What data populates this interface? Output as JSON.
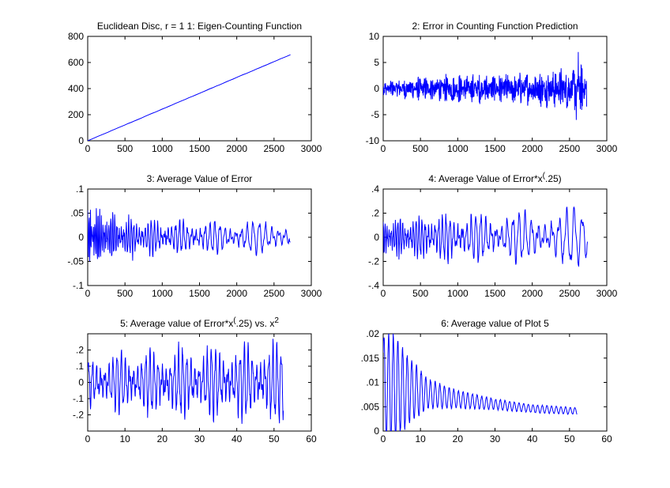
{
  "figure": {
    "background": "#ffffff",
    "line_color": "#0000ff"
  },
  "chart_data": [
    {
      "id": "p1",
      "type": "line",
      "title": "Euclidean Disc, r = 1 1: Eigen-Counting Function",
      "xlim": [
        0,
        3000
      ],
      "ylim": [
        0,
        800
      ],
      "x_ticks": [
        0,
        500,
        1000,
        1500,
        2000,
        2500,
        3000
      ],
      "y_ticks": [
        0,
        200,
        400,
        600,
        800
      ],
      "series": [
        {
          "kind": "linear",
          "x_start": 0,
          "x_end": 2720,
          "y_start": 0,
          "y_end": 660
        }
      ]
    },
    {
      "id": "p2",
      "type": "line",
      "title": "2: Error in Counting Function Prediction",
      "xlim": [
        0,
        3000
      ],
      "ylim": [
        -10,
        10
      ],
      "x_ticks": [
        0,
        500,
        1000,
        1500,
        2000,
        2500,
        3000
      ],
      "y_ticks": [
        -10,
        -5,
        0,
        5,
        10
      ],
      "series": [
        {
          "kind": "oscillating",
          "x_start": 0,
          "x_end": 2730,
          "points": 900,
          "envelope": [
            [
              0,
              1.5
            ],
            [
              500,
              2.5
            ],
            [
              1000,
              3.0
            ],
            [
              1500,
              3.0
            ],
            [
              2000,
              3.5
            ],
            [
              2500,
              4.5
            ],
            [
              2730,
              5.0
            ]
          ],
          "baseline": 0.0,
          "extremes": {
            "max": 7,
            "min": -6
          }
        }
      ]
    },
    {
      "id": "p3",
      "type": "line",
      "title": "3: Average Value of Error",
      "xlim": [
        0,
        3000
      ],
      "ylim": [
        -0.1,
        0.1
      ],
      "x_ticks": [
        0,
        500,
        1000,
        1500,
        2000,
        2500,
        3000
      ],
      "y_ticks": [
        -0.1,
        -0.05,
        0,
        0.05,
        0.1
      ],
      "series": [
        {
          "kind": "oscillating",
          "x_start": 0,
          "x_end": 2720,
          "points": 520,
          "envelope": [
            [
              0,
              0.075
            ],
            [
              150,
              0.055
            ],
            [
              500,
              0.038
            ],
            [
              1000,
              0.032
            ],
            [
              1500,
              0.03
            ],
            [
              2000,
              0.03
            ],
            [
              2500,
              0.03
            ],
            [
              2720,
              0.028
            ]
          ],
          "baseline": 0.0,
          "period_start": 18,
          "period_end": 95
        }
      ]
    },
    {
      "id": "p4",
      "type": "line",
      "title": "4: Average Value of Error*x^(.25)",
      "xlim": [
        0,
        3000
      ],
      "ylim": [
        -0.4,
        0.4
      ],
      "x_ticks": [
        0,
        500,
        1000,
        1500,
        2000,
        2500,
        3000
      ],
      "y_ticks": [
        -0.4,
        -0.2,
        0,
        0.2,
        0.4
      ],
      "series": [
        {
          "kind": "oscillating",
          "x_start": 0,
          "x_end": 2740,
          "points": 520,
          "envelope": [
            [
              0,
              0.16
            ],
            [
              500,
              0.17
            ],
            [
              1000,
              0.18
            ],
            [
              1500,
              0.18
            ],
            [
              2000,
              0.19
            ],
            [
              2500,
              0.21
            ],
            [
              2740,
              0.2
            ]
          ],
          "baseline": 0.0,
          "period_start": 25,
          "period_end": 110
        }
      ]
    },
    {
      "id": "p5",
      "type": "line",
      "title": "5: Average value of Error*x^(.25) vs. x^2",
      "xlim": [
        0,
        60
      ],
      "ylim": [
        -0.3,
        0.3
      ],
      "x_ticks": [
        0,
        10,
        20,
        30,
        40,
        50,
        60
      ],
      "y_ticks": [
        -0.2,
        -0.1,
        0,
        0.1,
        0.2
      ],
      "series": [
        {
          "kind": "oscillating",
          "x_start": 0,
          "x_end": 52.5,
          "points": 700,
          "envelope": [
            [
              0,
              0.14
            ],
            [
              10,
              0.17
            ],
            [
              20,
              0.18
            ],
            [
              30,
              0.19
            ],
            [
              40,
              0.2
            ],
            [
              52.5,
              0.22
            ]
          ],
          "baseline": 0.0,
          "period_start": 1.1,
          "period_end": 1.1
        }
      ]
    },
    {
      "id": "p6",
      "type": "line",
      "title": "6: Average value of Plot 5",
      "xlim": [
        0,
        60
      ],
      "ylim": [
        0,
        0.02
      ],
      "x_ticks": [
        0,
        10,
        20,
        30,
        40,
        50,
        60
      ],
      "y_ticks": [
        0,
        0.005,
        0.01,
        0.015,
        0.02
      ],
      "series": [
        {
          "kind": "decaying",
          "x_start": 0,
          "x_end": 52,
          "points": 700,
          "baseline_points": [
            [
              0,
              0.009
            ],
            [
              5,
              0.0085
            ],
            [
              10,
              0.008
            ],
            [
              15,
              0.0072
            ],
            [
              20,
              0.0065
            ],
            [
              30,
              0.0055
            ],
            [
              40,
              0.0046
            ],
            [
              52,
              0.0041
            ]
          ],
          "envelope": [
            [
              0,
              0.011
            ],
            [
              3,
              0.0105
            ],
            [
              8,
              0.006
            ],
            [
              12,
              0.003
            ],
            [
              20,
              0.0018
            ],
            [
              30,
              0.0011
            ],
            [
              40,
              0.0008
            ],
            [
              52,
              0.0007
            ]
          ],
          "period": 1.25
        }
      ]
    }
  ]
}
